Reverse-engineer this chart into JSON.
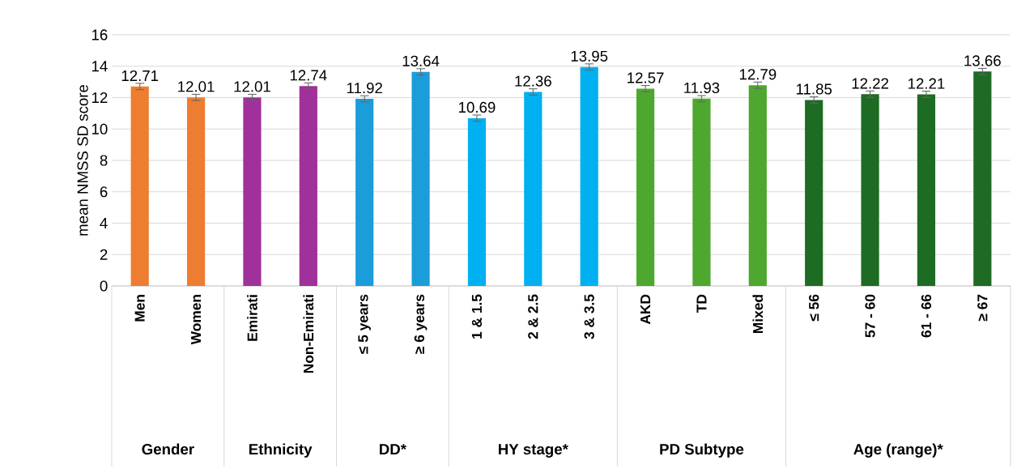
{
  "chart_data": {
    "type": "bar",
    "ylabel": "mean NMSS SD score",
    "categories": [
      "Men",
      "Women",
      "Emirati",
      "Non-Emirati",
      "≤ 5 years",
      "≥ 6 years",
      "1 & 1.5",
      "2 & 2.5",
      "3 & 3.5",
      "AKD",
      "TD",
      "Mixed",
      "≤ 56",
      "57 - 60",
      "61 - 66",
      "≥ 67"
    ],
    "values": [
      12.71,
      12.01,
      12.01,
      12.74,
      11.92,
      13.64,
      10.69,
      12.36,
      13.95,
      12.57,
      11.93,
      12.79,
      11.85,
      12.22,
      12.21,
      13.66
    ],
    "errors": [
      0.2,
      0.2,
      0.2,
      0.2,
      0.2,
      0.2,
      0.2,
      0.2,
      0.2,
      0.2,
      0.2,
      0.2,
      0.2,
      0.2,
      0.2,
      0.2
    ],
    "colors": [
      "#ed7d31",
      "#ed7d31",
      "#a0309a",
      "#a0309a",
      "#1a9dd9",
      "#1a9dd9",
      "#00b0f0",
      "#00b0f0",
      "#00b0f0",
      "#4ea72e",
      "#4ea72e",
      "#4ea72e",
      "#1e6b24",
      "#1e6b24",
      "#1e6b24",
      "#1e6b24"
    ],
    "annotations": [
      "Gender",
      "Ethnicity",
      "DD*",
      "HY stage*",
      "PD Subtype",
      "Age (range)*"
    ],
    "ylim": [
      0,
      16
    ],
    "yticks": [
      0,
      2,
      4,
      6,
      8,
      10,
      12,
      14,
      16
    ],
    "grid": "y",
    "data_labels": true
  }
}
